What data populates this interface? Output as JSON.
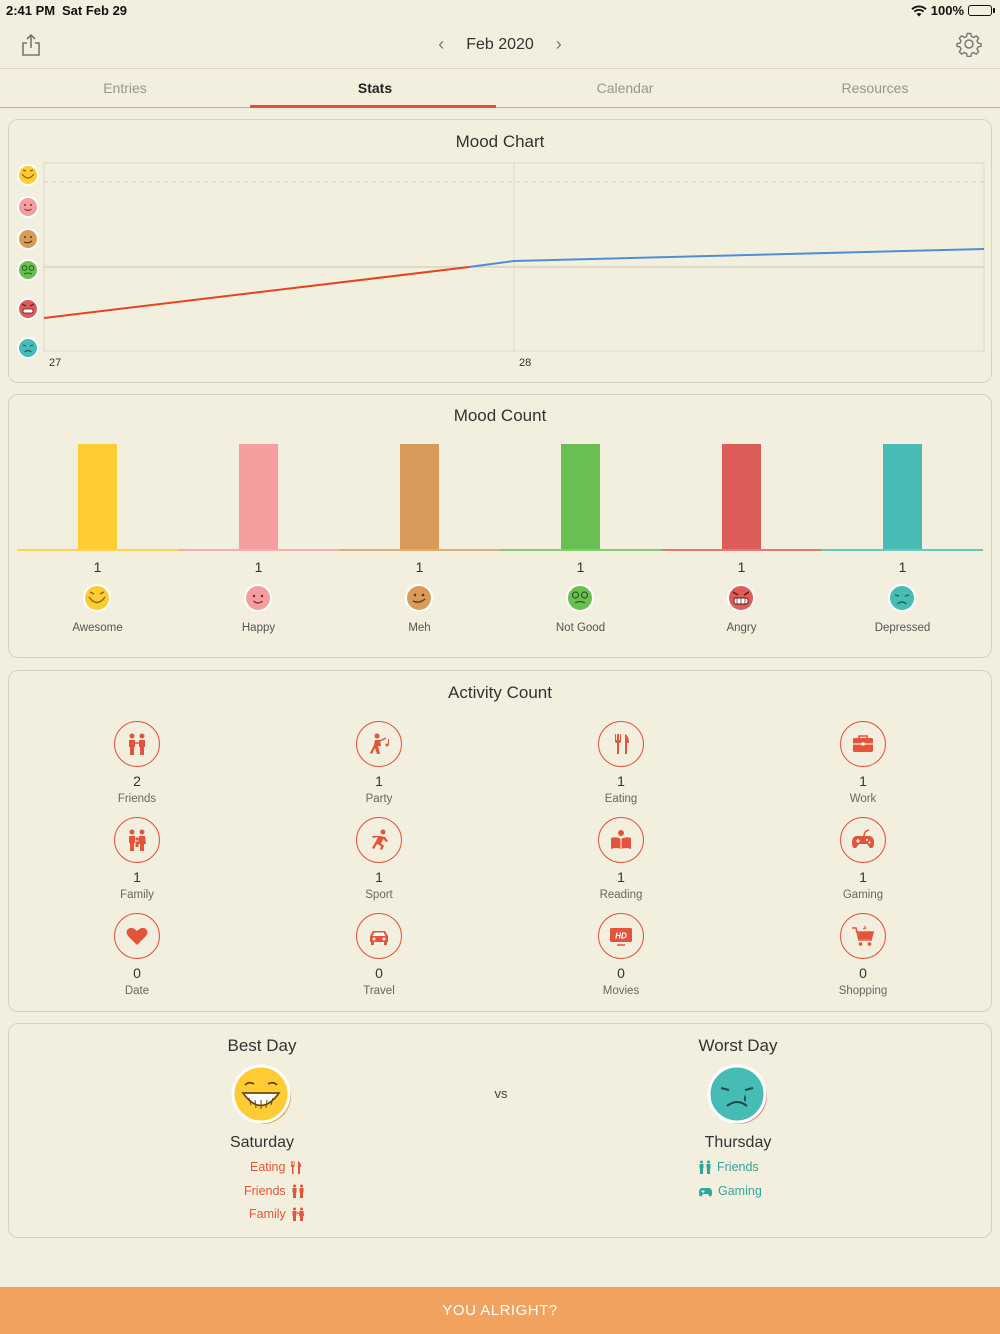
{
  "status": {
    "time": "2:41 PM",
    "date": "Sat Feb 29",
    "battery": "100%"
  },
  "nav": {
    "month": "Feb 2020",
    "prev": "‹",
    "next": "›"
  },
  "tabs": [
    "Entries",
    "Stats",
    "Calendar",
    "Resources"
  ],
  "active_tab": "Stats",
  "mood_chart": {
    "title": "Mood Chart",
    "x_labels": [
      "27",
      "28"
    ]
  },
  "mood_count": {
    "title": "Mood Count",
    "items": [
      {
        "label": "Awesome",
        "count": "1",
        "color": "#ffcc33"
      },
      {
        "label": "Happy",
        "count": "1",
        "color": "#f59ea0"
      },
      {
        "label": "Meh",
        "count": "1",
        "color": "#d89b5a"
      },
      {
        "label": "Not Good",
        "count": "1",
        "color": "#6abf52"
      },
      {
        "label": "Angry",
        "count": "1",
        "color": "#dc5c58"
      },
      {
        "label": "Depressed",
        "count": "1",
        "color": "#46bcb4"
      }
    ]
  },
  "activity_count": {
    "title": "Activity Count",
    "items": [
      {
        "label": "Friends",
        "count": "2",
        "icon": "friends-icon"
      },
      {
        "label": "Party",
        "count": "1",
        "icon": "party-icon"
      },
      {
        "label": "Eating",
        "count": "1",
        "icon": "eating-icon"
      },
      {
        "label": "Work",
        "count": "1",
        "icon": "work-icon"
      },
      {
        "label": "Family",
        "count": "1",
        "icon": "family-icon"
      },
      {
        "label": "Sport",
        "count": "1",
        "icon": "sport-icon"
      },
      {
        "label": "Reading",
        "count": "1",
        "icon": "reading-icon"
      },
      {
        "label": "Gaming",
        "count": "1",
        "icon": "gaming-icon"
      },
      {
        "label": "Date",
        "count": "0",
        "icon": "heart-icon"
      },
      {
        "label": "Travel",
        "count": "0",
        "icon": "car-icon"
      },
      {
        "label": "Movies",
        "count": "0",
        "icon": "hd-icon"
      },
      {
        "label": "Shopping",
        "count": "0",
        "icon": "cart-icon"
      }
    ]
  },
  "best_worst": {
    "best_title": "Best Day",
    "worst_title": "Worst Day",
    "vs": "vs",
    "best_day": "Saturday",
    "worst_day": "Thursday",
    "best_activities": [
      "Eating",
      "Friends",
      "Family"
    ],
    "worst_activities": [
      "Friends",
      "Gaming"
    ]
  },
  "bottom_button": "YOU ALRIGHT?"
}
